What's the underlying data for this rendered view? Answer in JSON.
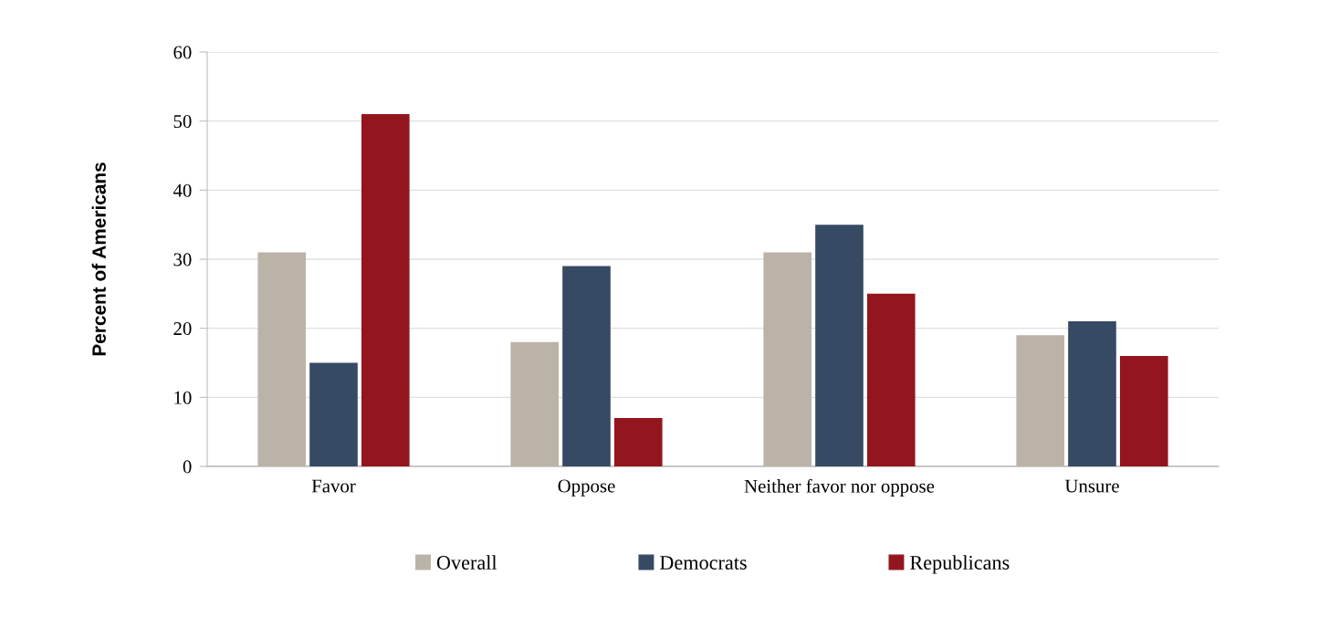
{
  "chart_data": {
    "type": "bar",
    "ylabel": "Percent of Americans",
    "categories": [
      "Favor",
      "Oppose",
      "Neither favor nor oppose",
      "Unsure"
    ],
    "series": [
      {
        "name": "Overall",
        "color": "#bcb3a8",
        "values": [
          31,
          18,
          31,
          19
        ]
      },
      {
        "name": "Democrats",
        "color": "#364a63",
        "values": [
          15,
          29,
          35,
          21
        ]
      },
      {
        "name": "Republicans",
        "color": "#93161e",
        "values": [
          51,
          7,
          25,
          16
        ]
      }
    ],
    "ylim": [
      0,
      60
    ],
    "yticks": [
      0,
      10,
      20,
      30,
      40,
      50,
      60
    ],
    "grid": "y",
    "legend": "bottom"
  }
}
